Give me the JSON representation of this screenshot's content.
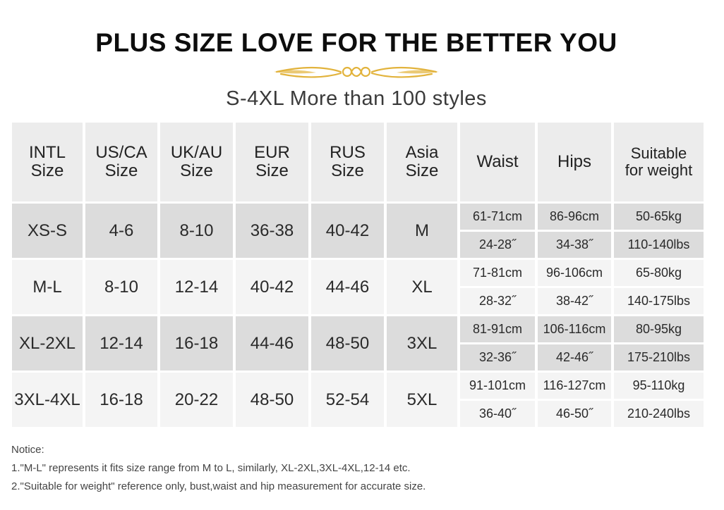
{
  "title": "PLUS SIZE LOVE FOR THE BETTER YOU",
  "subtitle": "S-4XL More than 100 styles",
  "ornament_color": "#e2b33c",
  "headers": [
    {
      "l1": "INTL",
      "l2": "Size"
    },
    {
      "l1": "US/CA",
      "l2": "Size"
    },
    {
      "l1": "UK/AU",
      "l2": "Size"
    },
    {
      "l1": "EUR",
      "l2": "Size"
    },
    {
      "l1": "RUS",
      "l2": "Size"
    },
    {
      "l1": "Asia",
      "l2": "Size"
    },
    {
      "l1": "Waist",
      "l2": ""
    },
    {
      "l1": "Hips",
      "l2": ""
    },
    {
      "l1": "Suitable",
      "l2": "for weight"
    }
  ],
  "rows": [
    {
      "intl": "XS-S",
      "us": "4-6",
      "uk": "8-10",
      "eur": "36-38",
      "rus": "40-42",
      "asia": "M",
      "waist_cm": "61-71cm",
      "hips_cm": "86-96cm",
      "weight_kg": "50-65kg",
      "waist_in": "24-28˝",
      "hips_in": "34-38˝",
      "weight_lbs": "110-140lbs"
    },
    {
      "intl": "M-L",
      "us": "8-10",
      "uk": "12-14",
      "eur": "40-42",
      "rus": "44-46",
      "asia": "XL",
      "waist_cm": "71-81cm",
      "hips_cm": "96-106cm",
      "weight_kg": "65-80kg",
      "waist_in": "28-32˝",
      "hips_in": "38-42˝",
      "weight_lbs": "140-175lbs"
    },
    {
      "intl": "XL-2XL",
      "us": "12-14",
      "uk": "16-18",
      "eur": "44-46",
      "rus": "48-50",
      "asia": "3XL",
      "waist_cm": "81-91cm",
      "hips_cm": "106-116cm",
      "weight_kg": "80-95kg",
      "waist_in": "32-36˝",
      "hips_in": "42-46˝",
      "weight_lbs": "175-210lbs"
    },
    {
      "intl": "3XL-4XL",
      "us": "16-18",
      "uk": "20-22",
      "eur": "48-50",
      "rus": "52-54",
      "asia": "5XL",
      "waist_cm": "91-101cm",
      "hips_cm": "116-127cm",
      "weight_kg": "95-110kg",
      "waist_in": "36-40˝",
      "hips_in": "46-50˝",
      "weight_lbs": "210-240lbs"
    }
  ],
  "notice": {
    "heading": "Notice:",
    "line1": "1.\"M-L\" represents it fits size range from M to L, similarly, XL-2XL,3XL-4XL,12-14 etc.",
    "line2": "2.\"Suitable for weight\" reference only, bust,waist and hip measurement for accurate size."
  }
}
